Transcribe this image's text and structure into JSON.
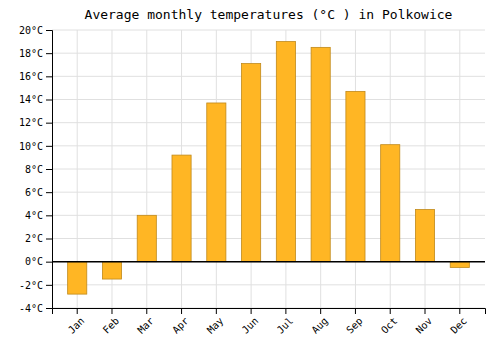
{
  "chart_data": {
    "type": "bar",
    "title": "Average monthly temperatures (°C ) in Polkowice",
    "categories": [
      "Jan",
      "Feb",
      "Mar",
      "Apr",
      "May",
      "Jun",
      "Jul",
      "Aug",
      "Sep",
      "Oct",
      "Nov",
      "Dec"
    ],
    "values": [
      -2.8,
      -1.5,
      4.0,
      9.2,
      13.7,
      17.1,
      19.0,
      18.5,
      14.7,
      10.1,
      4.5,
      -0.5
    ],
    "color": "#FFB624",
    "ylim": [
      -4,
      20
    ],
    "yticks": [
      {
        "value": -4,
        "label": "-4°C"
      },
      {
        "value": -2,
        "label": "-2°C"
      },
      {
        "value": 0,
        "label": "0°C"
      },
      {
        "value": 2,
        "label": "2°C"
      },
      {
        "value": 4,
        "label": "4°C"
      },
      {
        "value": 6,
        "label": "6°C"
      },
      {
        "value": 8,
        "label": "8°C"
      },
      {
        "value": 10,
        "label": "10°C"
      },
      {
        "value": 12,
        "label": "12°C"
      },
      {
        "value": 14,
        "label": "14°C"
      },
      {
        "value": 16,
        "label": "16°C"
      },
      {
        "value": 18,
        "label": "18°C"
      },
      {
        "value": 20,
        "label": "20°C"
      }
    ],
    "grid": true
  }
}
